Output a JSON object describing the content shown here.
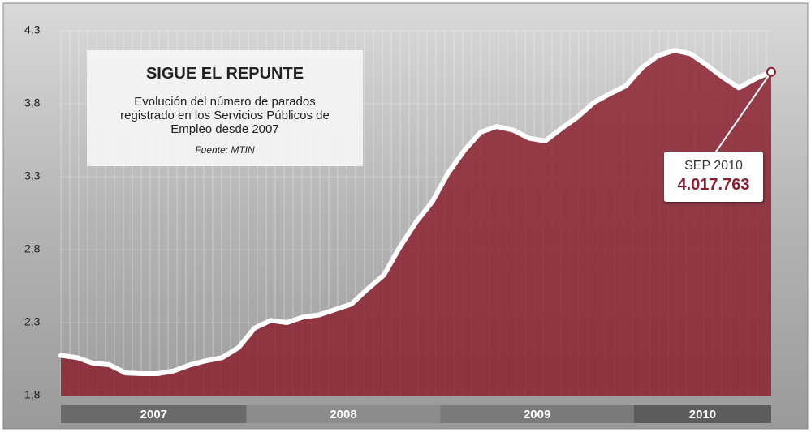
{
  "chart_data": {
    "type": "area",
    "title": "SIGUE EL REPUNTE",
    "subtitle": "Evolución del número de parados registrado en los Servicios Públicos de Empleo desde 2007",
    "source": "Fuente: MTIN",
    "categories": [
      null,
      null,
      null,
      null,
      null,
      null,
      null,
      null,
      null,
      null,
      null,
      null,
      null,
      null,
      null,
      null,
      null,
      null,
      null,
      null,
      null,
      null,
      null,
      null,
      null,
      null,
      null,
      null,
      null,
      null,
      null,
      null,
      null,
      null,
      null,
      null,
      null,
      null,
      null,
      null,
      null,
      null,
      null,
      null,
      null
    ],
    "x_group_labels": [
      "2007",
      "2008",
      "2009",
      "2010"
    ],
    "values": [
      2.075,
      2.06,
      2.021,
      2.011,
      1.955,
      1.95,
      1.95,
      1.969,
      2.01,
      2.039,
      2.06,
      2.129,
      2.262,
      2.315,
      2.3,
      2.338,
      2.353,
      2.39,
      2.427,
      2.53,
      2.625,
      2.818,
      2.989,
      3.128,
      3.327,
      3.482,
      3.605,
      3.644,
      3.62,
      3.564,
      3.545,
      3.63,
      3.709,
      3.808,
      3.868,
      3.923,
      4.048,
      4.13,
      4.166,
      4.142,
      4.066,
      3.982,
      3.909,
      3.97,
      4.017763
    ],
    "value_labels": [
      null,
      null,
      null,
      null,
      null,
      null,
      null,
      null,
      null,
      null,
      null,
      null,
      null,
      null,
      null,
      null,
      null,
      null,
      null,
      null,
      null,
      null,
      null,
      null,
      null,
      null,
      null,
      null,
      null,
      null,
      null,
      null,
      null,
      null,
      null,
      null,
      null,
      null,
      null,
      null,
      null,
      null,
      null,
      null,
      "4.017.763"
    ],
    "annotation": "SEP 2010",
    "color": "#8a1c2c",
    "ylim": [
      1.8,
      4.3
    ],
    "yticks": [
      {
        "value": 1.8,
        "label": "1,8"
      },
      {
        "value": 2.3,
        "label": "2,3"
      },
      {
        "value": 2.8,
        "label": "2,8"
      },
      {
        "value": 3.3,
        "label": "3,3"
      },
      {
        "value": 3.8,
        "label": "3,8"
      },
      {
        "value": 4.3,
        "label": "4,3"
      }
    ],
    "grid": true
  }
}
